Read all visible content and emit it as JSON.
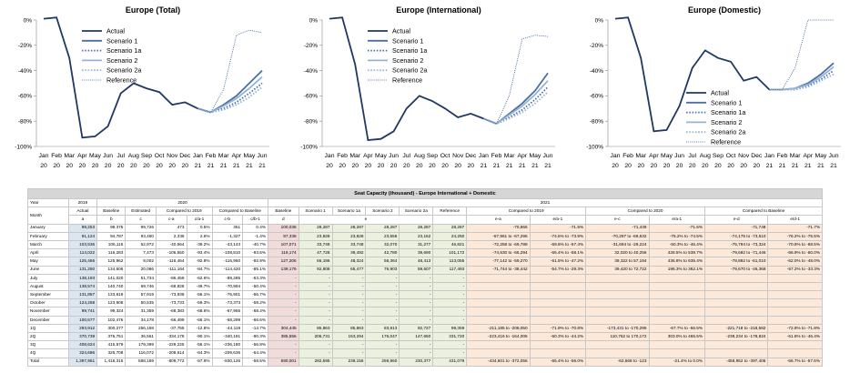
{
  "colors": {
    "actual": "#1f3864",
    "s1": "#4a6fa5",
    "s1a": "#4a6fa5",
    "s2": "#95b3d7",
    "s2a": "#95b3d7",
    "ref": "#2e5597"
  },
  "chart_data": [
    {
      "type": "line",
      "title": "Europe (Total)",
      "x": [
        "Jan 20",
        "Feb 20",
        "Mar 20",
        "Apr 20",
        "May 20",
        "Jun 20",
        "Jul 20",
        "Aug 20",
        "Sep 20",
        "Oct 20",
        "Nov 20",
        "Dec 20",
        "Jan 21",
        "Feb 21",
        "Mar 21",
        "Apr 21",
        "May 21",
        "Jun 21"
      ],
      "x_months": [
        "Jan",
        "Feb",
        "Mar",
        "Apr",
        "May",
        "Jun",
        "Jul",
        "Aug",
        "Sep",
        "Oct",
        "Nov",
        "Dec",
        "Jan",
        "Feb",
        "Mar",
        "Apr",
        "May",
        "Jun"
      ],
      "x_years": [
        "20",
        "20",
        "20",
        "20",
        "20",
        "20",
        "20",
        "20",
        "20",
        "20",
        "20",
        "20",
        "21",
        "21",
        "21",
        "21",
        "21",
        "21"
      ],
      "yticks": [
        "0%",
        "-20%",
        "-40%",
        "-60%",
        "-80%",
        "-100%"
      ],
      "ylim": [
        -100,
        0
      ],
      "legend_pos": "top-left",
      "series": [
        {
          "name": "Actual",
          "values": [
            1,
            2,
            -30,
            -93,
            -92,
            -84,
            -58,
            -50,
            -54,
            -57,
            -67,
            -65,
            -70,
            -73,
            null,
            null,
            null,
            null
          ]
        },
        {
          "name": "Scenario 1",
          "values": [
            null,
            null,
            null,
            null,
            null,
            null,
            null,
            null,
            null,
            null,
            null,
            null,
            -70,
            -73,
            -67,
            -60,
            -50,
            -40
          ]
        },
        {
          "name": "Scenario 1a",
          "values": [
            null,
            null,
            null,
            null,
            null,
            null,
            null,
            null,
            null,
            null,
            null,
            null,
            -70,
            -73,
            -70,
            -65,
            -58,
            -50
          ]
        },
        {
          "name": "Scenario 2",
          "values": [
            null,
            null,
            null,
            null,
            null,
            null,
            null,
            null,
            null,
            null,
            null,
            null,
            -70,
            -73,
            -68,
            -62,
            -54,
            -45
          ]
        },
        {
          "name": "Scenario 2a",
          "values": [
            null,
            null,
            null,
            null,
            null,
            null,
            null,
            null,
            null,
            null,
            null,
            null,
            -70,
            -73,
            -71,
            -67,
            -61,
            -53
          ]
        },
        {
          "name": "Reference",
          "values": [
            null,
            null,
            null,
            null,
            null,
            null,
            null,
            null,
            null,
            null,
            null,
            null,
            -70,
            -73,
            -55,
            -12,
            -8,
            -10
          ]
        }
      ]
    },
    {
      "type": "line",
      "title": "Europe (International)",
      "x": [
        "Jan 20",
        "Feb 20",
        "Mar 20",
        "Apr 20",
        "May 20",
        "Jun 20",
        "Jul 20",
        "Aug 20",
        "Sep 20",
        "Oct 20",
        "Nov 20",
        "Dec 20",
        "Jan 21",
        "Feb 21",
        "Mar 21",
        "Apr 21",
        "May 21",
        "Jun 21"
      ],
      "x_months": [
        "Jan",
        "Feb",
        "Mar",
        "Apr",
        "May",
        "Jun",
        "Jul",
        "Aug",
        "Sep",
        "Oct",
        "Nov",
        "Dec",
        "Jan",
        "Feb",
        "Mar",
        "Apr",
        "May",
        "Jun"
      ],
      "x_years": [
        "20",
        "20",
        "20",
        "20",
        "20",
        "20",
        "20",
        "20",
        "20",
        "20",
        "20",
        "20",
        "21",
        "21",
        "21",
        "21",
        "21",
        "21"
      ],
      "yticks": [
        "0%",
        "-20%",
        "-40%",
        "-60%",
        "-80%",
        "-100%"
      ],
      "ylim": [
        -100,
        0
      ],
      "legend_pos": "top-left",
      "series": [
        {
          "name": "Actual",
          "values": [
            1,
            2,
            -35,
            -95,
            -94,
            -88,
            -70,
            -60,
            -64,
            -70,
            -77,
            -74,
            -78,
            -82,
            null,
            null,
            null,
            null
          ]
        },
        {
          "name": "Scenario 1",
          "values": [
            null,
            null,
            null,
            null,
            null,
            null,
            null,
            null,
            null,
            null,
            null,
            null,
            -78,
            -82,
            -74,
            -66,
            -56,
            -42
          ]
        },
        {
          "name": "Scenario 1a",
          "values": [
            null,
            null,
            null,
            null,
            null,
            null,
            null,
            null,
            null,
            null,
            null,
            null,
            -78,
            -82,
            -77,
            -71,
            -63,
            -53
          ]
        },
        {
          "name": "Scenario 2",
          "values": [
            null,
            null,
            null,
            null,
            null,
            null,
            null,
            null,
            null,
            null,
            null,
            null,
            -78,
            -82,
            -75,
            -68,
            -59,
            -48
          ]
        },
        {
          "name": "Scenario 2a",
          "values": [
            null,
            null,
            null,
            null,
            null,
            null,
            null,
            null,
            null,
            null,
            null,
            null,
            -78,
            -82,
            -78,
            -73,
            -66,
            -57
          ]
        },
        {
          "name": "Reference",
          "values": [
            null,
            null,
            null,
            null,
            null,
            null,
            null,
            null,
            null,
            null,
            null,
            null,
            -78,
            -82,
            -60,
            -15,
            -12,
            -13
          ]
        }
      ]
    },
    {
      "type": "line",
      "title": "Europe (Domestic)",
      "x": [
        "Jan 20",
        "Feb 20",
        "Mar 20",
        "Apr 20",
        "May 20",
        "Jun 20",
        "Jul 20",
        "Aug 20",
        "Sep 20",
        "Oct 20",
        "Nov 20",
        "Dec 20",
        "Jan 21",
        "Feb 21",
        "Mar 21",
        "Apr 21",
        "May 21",
        "Jun 21"
      ],
      "x_months": [
        "Jan",
        "Feb",
        "Mar",
        "Apr",
        "May",
        "Jun",
        "Jul",
        "Aug",
        "Sep",
        "Oct",
        "Nov",
        "Dec",
        "Jan",
        "Feb",
        "Mar",
        "Apr",
        "May",
        "Jun"
      ],
      "x_years": [
        "20",
        "20",
        "20",
        "20",
        "20",
        "20",
        "20",
        "20",
        "20",
        "20",
        "20",
        "20",
        "21",
        "21",
        "21",
        "21",
        "21",
        "21"
      ],
      "yticks": [
        "0%",
        "-20%",
        "-40%",
        "-60%",
        "-80%",
        "-100%"
      ],
      "ylim": [
        -100,
        0
      ],
      "legend_pos": "bottom-left",
      "series": [
        {
          "name": "Actual",
          "values": [
            1,
            2,
            -30,
            -88,
            -87,
            -68,
            -38,
            -24,
            -30,
            -33,
            -48,
            -45,
            -55,
            -55,
            null,
            null,
            null,
            null
          ]
        },
        {
          "name": "Scenario 1",
          "values": [
            null,
            null,
            null,
            null,
            null,
            null,
            null,
            null,
            null,
            null,
            null,
            null,
            -55,
            -55,
            -54,
            -50,
            -43,
            -34
          ]
        },
        {
          "name": "Scenario 1a",
          "values": [
            null,
            null,
            null,
            null,
            null,
            null,
            null,
            null,
            null,
            null,
            null,
            null,
            -55,
            -55,
            -55,
            -52,
            -47,
            -40
          ]
        },
        {
          "name": "Scenario 2",
          "values": [
            null,
            null,
            null,
            null,
            null,
            null,
            null,
            null,
            null,
            null,
            null,
            null,
            -55,
            -55,
            -54,
            -51,
            -45,
            -37
          ]
        },
        {
          "name": "Scenario 2a",
          "values": [
            null,
            null,
            null,
            null,
            null,
            null,
            null,
            null,
            null,
            null,
            null,
            null,
            -55,
            -55,
            -55,
            -53,
            -48,
            -43
          ]
        },
        {
          "name": "Reference",
          "values": [
            null,
            null,
            null,
            null,
            null,
            null,
            null,
            null,
            null,
            null,
            null,
            null,
            -55,
            -55,
            -38,
            0,
            0,
            0
          ]
        }
      ]
    }
  ],
  "table": {
    "title": "Seat Capacity (thousand) - Europe International + Domestic",
    "year_label": "Year",
    "month_label": "Month",
    "year_2019": "2019",
    "year_2020": "2020",
    "year_2021": "2021",
    "h2": [
      "Actual",
      "Baseline",
      "Estimated",
      "Compared to 2019",
      "Compared to Baseline",
      "Baseline",
      "Scenario 1",
      "Scenario 1a",
      "Scenario 2",
      "Scenario 2a",
      "Reference",
      "Compared to 2019",
      "Compared to 2020",
      "Compared to Baseline"
    ],
    "h3": [
      "a",
      "b",
      "c",
      "c-a",
      "c/a-1",
      "c-b",
      "c/b-1",
      "d",
      "e",
      "",
      "e-a",
      "e/a-1",
      "e-c",
      "e/a-1",
      "e-d",
      "e/d-1"
    ],
    "rows": [
      [
        "January",
        "99,253",
        "99,375",
        "99,726",
        "473",
        "0.5%",
        "351",
        "0.4%",
        "100,036",
        "28,287",
        "28,287",
        "28,287",
        "28,287",
        "28,287",
        "-70,966",
        "-71.5%",
        "-71,439",
        "-71.6%",
        "-71,748",
        "-71.7%"
      ],
      [
        "February",
        "91,124",
        "94,787",
        "93,460",
        "2,336",
        "2.6%",
        "-1,327",
        "-1.4%",
        "97,338",
        "23,828",
        "23,828",
        "23,556",
        "23,162",
        "24,250",
        "-67,961 to -67,296",
        "-74.6% to -73.9%",
        "-70,297 to -69,632",
        "-75.2% to -74.5%",
        "-74,175 to -73,510",
        "-76.2% to -75.5%"
      ],
      [
        "March",
        "103,536",
        "106,115",
        "62,972",
        "-40,564",
        "-39.2%",
        "-43,143",
        "-40.7%",
        "107,071",
        "33,748",
        "33,748",
        "32,070",
        "31,277",
        "46,821",
        "-72,258 to -69,788",
        "-69.8% to -67.4%",
        "-31,694 to -29,224",
        "-50.3% to -46.4%",
        "-75,794 to -73,324",
        "-70.8% to -68.5%"
      ],
      [
        "April",
        "114,022",
        "116,283",
        "7,473",
        "-106,550",
        "-93.4%",
        "-108,810",
        "-93.6%",
        "119,174",
        "47,728",
        "39,492",
        "42,780",
        "39,690",
        "101,172",
        "-74,530 to -66,294",
        "-65.4% to -58.1%",
        "32,020 to 40,256",
        "428.5% to 538.7%",
        "-79,682 to -71,446",
        "-66.9% to -60.0%"
      ],
      [
        "May",
        "125,466",
        "125,962",
        "9,002",
        "-116,464",
        "-92.8%",
        "-116,960",
        "-92.9%",
        "127,206",
        "66,196",
        "48,324",
        "56,364",
        "48,413",
        "113,055",
        "-77,142 to -59,270",
        "-61.5% to -47.2%",
        "39,322 to 57,194",
        "436.8% to 635.4%",
        "-78,882 to -61,010",
        "-62.0% to -48.0%"
      ],
      [
        "June",
        "131,250",
        "134,506",
        "20,086",
        "-111,164",
        "-84.7%",
        "-114,420",
        "-85.1%",
        "139,176",
        "92,808",
        "65,477",
        "76,903",
        "59,507",
        "117,493",
        "-71,744 to -38,442",
        "-54.7% to -29.3%",
        "39,420 to 72,722",
        "196.3% to 362.1%",
        "-79,670 to -46,368",
        "-57.2% to -33.3%"
      ],
      [
        "July",
        "138,193",
        "141,020",
        "51,734",
        "-86,459",
        "-62.6%",
        "-89,285",
        "-63.3%",
        "-",
        "-",
        "-",
        "-",
        "-",
        "-",
        "",
        "",
        "",
        "",
        "",
        ""
      ],
      [
        "August",
        "138,574",
        "140,740",
        "69,746",
        "-68,828",
        "-49.7%",
        "-70,994",
        "-50.4%",
        "-",
        "-",
        "-",
        "-",
        "-",
        "-",
        "",
        "",
        "",
        "",
        "",
        ""
      ],
      [
        "September",
        "131,857",
        "133,819",
        "57,919",
        "-73,938",
        "-56.1%",
        "-75,901",
        "-56.7%",
        "-",
        "-",
        "-",
        "-",
        "-",
        "-",
        "",
        "",
        "",
        "",
        "",
        ""
      ],
      [
        "October",
        "124,268",
        "123,908",
        "50,535",
        "-73,733",
        "-59.3%",
        "-73,373",
        "-59.2%",
        "-",
        "-",
        "-",
        "-",
        "-",
        "-",
        "",
        "",
        "",
        "",
        "",
        ""
      ],
      [
        "November",
        "99,741",
        "99,324",
        "31,359",
        "-68,383",
        "-68.6%",
        "-67,965",
        "-68.4%",
        "-",
        "-",
        "-",
        "-",
        "-",
        "-",
        "",
        "",
        "",
        "",
        "",
        ""
      ],
      [
        "December",
        "100,677",
        "102,476",
        "34,178",
        "-66,499",
        "-66.1%",
        "-68,299",
        "-66.6%",
        "-",
        "-",
        "-",
        "-",
        "-",
        "-",
        "",
        "",
        "",
        "",
        "",
        ""
      ],
      [
        "1Q",
        "293,912",
        "300,277",
        "256,158",
        "-37,755",
        "-12.8%",
        "-44,119",
        "-14.7%",
        "304,445",
        "85,863",
        "85,863",
        "83,913",
        "82,727",
        "99,359",
        "-211,185 to -208,050",
        "-71.9% to -70.8%",
        "-173,431 to -170,295",
        "-67.7% to -66.5%",
        "-221,718 to -218,582",
        "-72.8% to -71.8%"
      ],
      [
        "2Q",
        "370,739",
        "376,751",
        "36,561",
        "-334,178",
        "-90.1%",
        "-340,191",
        "-90.3%",
        "385,556",
        "206,731",
        "153,294",
        "176,047",
        "147,650",
        "331,720",
        "-223,416 to -164,006",
        "-60.3% to -44.2%",
        "110,762 to 170,172",
        "303.0% to 465.5%",
        "-238,234 to -178,824",
        "-61.8% to -46.4%"
      ],
      [
        "3Q",
        "408,624",
        "415,579",
        "179,399",
        "-229,225",
        "-56.1%",
        "-236,180",
        "-56.8%",
        "-",
        "-",
        "-",
        "-",
        "-",
        "-",
        "",
        "",
        "",
        "",
        "",
        ""
      ],
      [
        "4Q",
        "324,686",
        "325,708",
        "116,072",
        "-208,614",
        "-64.3%",
        "-209,636",
        "-64.4%",
        "-",
        "-",
        "-",
        "-",
        "-",
        "-",
        "",
        "",
        "",
        "",
        "",
        ""
      ],
      [
        "Total",
        "1,397,961",
        "1,418,315",
        "588,189",
        "-809,772",
        "-57.9%",
        "-830,126",
        "-58.5%",
        "690,001",
        "292,595",
        "239,156",
        "259,960",
        "230,377",
        "431,079",
        "-434,601 to -372,056",
        "-65.4% to -56.0%",
        "-62,668 to -123",
        "-21.4% to 0.0%",
        "-459,952 to -397,406",
        "-66.7% to -57.6%"
      ]
    ]
  }
}
